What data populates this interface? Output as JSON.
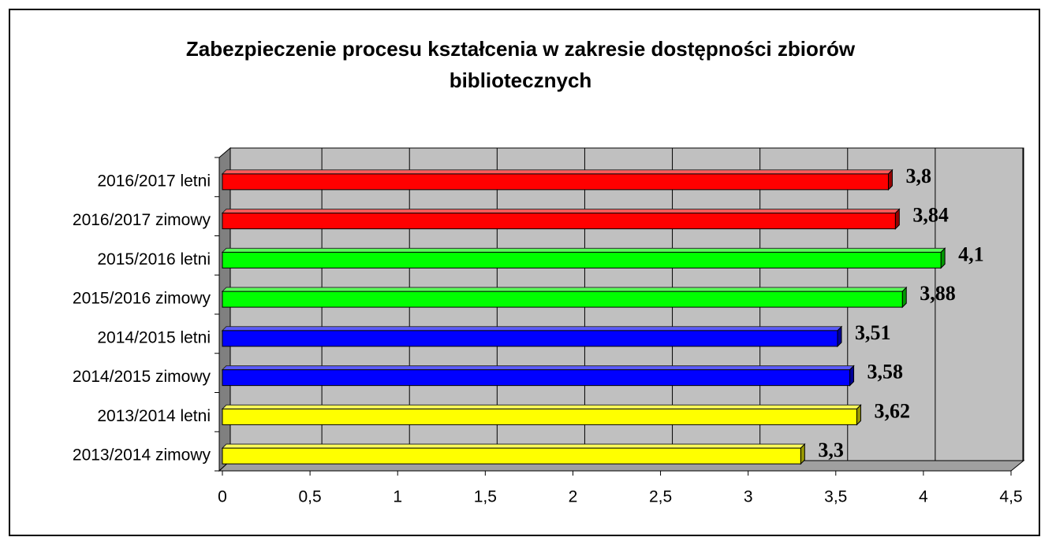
{
  "chart_data": {
    "type": "bar3d-horizontal",
    "title": "Zabezpieczenie procesu kształcenia w zakresie dostępności zbiorów bibliotecznych",
    "categories": [
      "2016/2017 letni",
      "2016/2017 zimowy",
      "2015/2016 letni",
      "2015/2016 zimowy",
      "2014/2015 letni",
      "2014/2015 zimowy",
      "2013/2014 letni",
      "2013/2014 zimowy"
    ],
    "values": [
      3.8,
      3.84,
      4.1,
      3.88,
      3.51,
      3.58,
      3.62,
      3.3
    ],
    "value_labels": [
      "3,8",
      "3,84",
      "4,1",
      "3,88",
      "3,51",
      "3,58",
      "3,62",
      "3,3"
    ],
    "colors": [
      "#ff0000",
      "#ff0000",
      "#00ff00",
      "#00ff00",
      "#0000ff",
      "#0000ff",
      "#ffff00",
      "#ffff00"
    ],
    "xlim": [
      0,
      4.5
    ],
    "xticks": [
      0,
      {
        "value": 0.5,
        "label": "0,5"
      },
      1,
      {
        "value": 1.5,
        "label": "1,5"
      },
      2,
      {
        "value": 2.5,
        "label": "2,5"
      },
      3,
      {
        "value": 3.5,
        "label": "3,5"
      },
      4,
      {
        "value": 4.5,
        "label": "4,5"
      }
    ],
    "grid": true
  }
}
